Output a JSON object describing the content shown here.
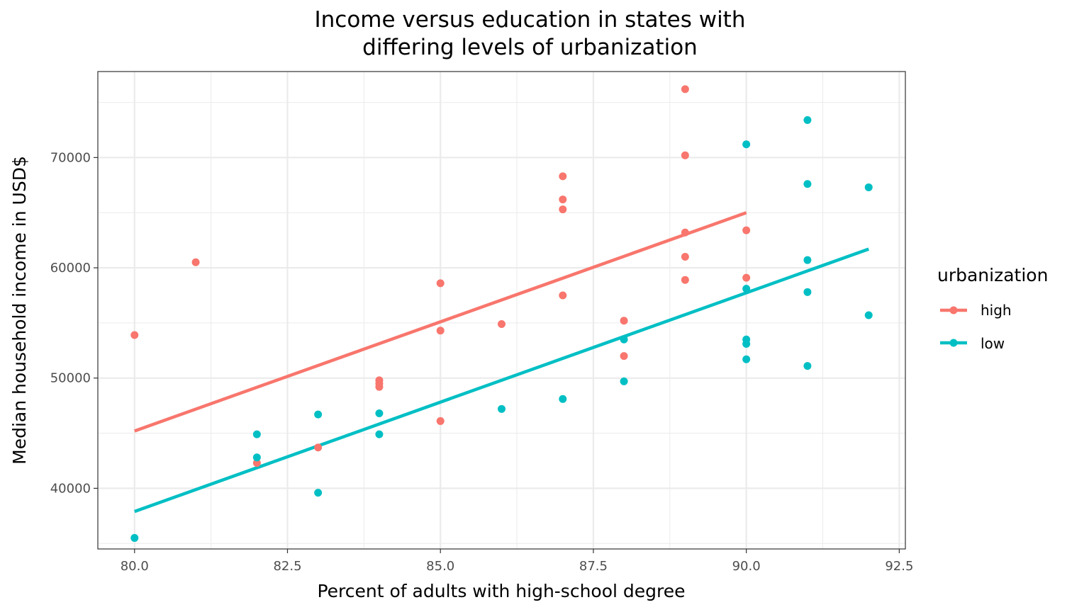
{
  "chart_data": {
    "type": "scatter",
    "title_line1": "Income versus education in states with",
    "title_line2": "differing levels of urbanization",
    "xlabel": "Percent of adults with high-school degree",
    "ylabel": "Median household income in USD$",
    "xlim": [
      79.4,
      92.6
    ],
    "ylim": [
      34500,
      77800
    ],
    "x_ticks": [
      80.0,
      82.5,
      85.0,
      87.5,
      90.0,
      92.5
    ],
    "x_tick_labels": [
      "80.0",
      "82.5",
      "85.0",
      "87.5",
      "90.0",
      "92.5"
    ],
    "y_ticks": [
      40000,
      50000,
      60000,
      70000
    ],
    "y_tick_labels": [
      "40000",
      "50000",
      "60000",
      "70000"
    ],
    "grid": true,
    "legend": {
      "title": "urbanization",
      "position": "right",
      "entries": [
        "high",
        "low"
      ]
    },
    "series": [
      {
        "name": "high",
        "color": "#F8766D",
        "points": [
          [
            80,
            53900
          ],
          [
            81,
            60500
          ],
          [
            82,
            42300
          ],
          [
            83,
            43700
          ],
          [
            84,
            49800
          ],
          [
            84,
            49500
          ],
          [
            84,
            49200
          ],
          [
            85,
            58600
          ],
          [
            85,
            54300
          ],
          [
            85,
            46100
          ],
          [
            86,
            54900
          ],
          [
            87,
            68300
          ],
          [
            87,
            66200
          ],
          [
            87,
            65300
          ],
          [
            87,
            57500
          ],
          [
            88,
            55200
          ],
          [
            88,
            52000
          ],
          [
            89,
            76200
          ],
          [
            89,
            70200
          ],
          [
            89,
            63200
          ],
          [
            89,
            61000
          ],
          [
            89,
            58900
          ],
          [
            90,
            63400
          ],
          [
            90,
            59100
          ]
        ],
        "fit": [
          [
            80,
            45200
          ],
          [
            90,
            65000
          ]
        ]
      },
      {
        "name": "low",
        "color": "#00BFC4",
        "points": [
          [
            80,
            35500
          ],
          [
            82,
            44900
          ],
          [
            82,
            42800
          ],
          [
            83,
            46700
          ],
          [
            83,
            39600
          ],
          [
            84,
            46800
          ],
          [
            84,
            44900
          ],
          [
            86,
            47200
          ],
          [
            87,
            48100
          ],
          [
            88,
            53500
          ],
          [
            88,
            49700
          ],
          [
            90,
            71200
          ],
          [
            90,
            58100
          ],
          [
            90,
            53500
          ],
          [
            90,
            53100
          ],
          [
            90,
            51700
          ],
          [
            91,
            73400
          ],
          [
            91,
            67600
          ],
          [
            91,
            60700
          ],
          [
            91,
            57800
          ],
          [
            91,
            51100
          ],
          [
            92,
            67300
          ],
          [
            92,
            55700
          ]
        ],
        "fit": [
          [
            80,
            37900
          ],
          [
            92,
            61700
          ]
        ]
      }
    ]
  }
}
